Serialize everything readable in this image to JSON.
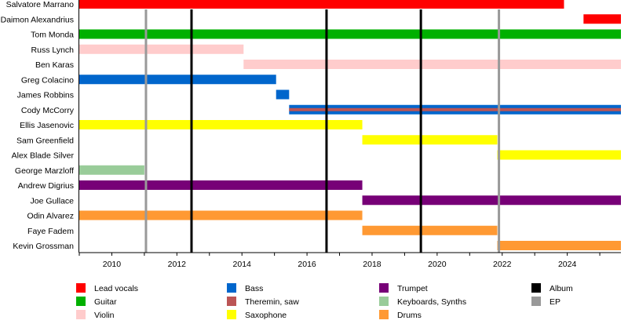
{
  "chart_data": {
    "type": "timeline",
    "xlim": [
      2009.0,
      2025.65
    ],
    "x_ticks": [
      2010,
      2012,
      2014,
      2016,
      2018,
      2020,
      2022,
      2024
    ],
    "grid": false,
    "legend_position": "bottom",
    "roles": {
      "lead_vocals": {
        "label": "Lead vocals",
        "color": "#ff0000"
      },
      "guitar": {
        "label": "Guitar",
        "color": "#00b000"
      },
      "violin": {
        "label": "Violin",
        "color": "#ffcccc"
      },
      "bass": {
        "label": "Bass",
        "color": "#0066cc"
      },
      "theremin": {
        "label": "Theremin, saw",
        "color": "#bb5555"
      },
      "saxophone": {
        "label": "Saxophone",
        "color": "#ffff00"
      },
      "trumpet": {
        "label": "Trumpet",
        "color": "#770077"
      },
      "keyboards": {
        "label": "Keyboards, Synths",
        "color": "#99cc99"
      },
      "drums": {
        "label": "Drums",
        "color": "#ff9933"
      },
      "album": {
        "label": "Album",
        "color": "#000000"
      },
      "ep": {
        "label": "EP",
        "color": "#999999"
      }
    },
    "legend_order": [
      [
        "lead_vocals",
        "guitar",
        "violin"
      ],
      [
        "bass",
        "theremin",
        "saxophone"
      ],
      [
        "trumpet",
        "keyboards",
        "drums"
      ],
      [
        "album",
        "ep"
      ]
    ],
    "members": [
      {
        "name": "Salvatore Marrano",
        "spans": [
          {
            "role": "lead_vocals",
            "start": 2009.0,
            "end": 2023.9
          }
        ]
      },
      {
        "name": "Daimon Alexandrius",
        "spans": [
          {
            "role": "lead_vocals",
            "start": 2024.5,
            "end": 2025.65
          }
        ]
      },
      {
        "name": "Tom Monda",
        "spans": [
          {
            "role": "guitar",
            "start": 2009.0,
            "end": 2025.65
          }
        ]
      },
      {
        "name": "Russ Lynch",
        "spans": [
          {
            "role": "violin",
            "start": 2009.0,
            "end": 2014.05
          }
        ]
      },
      {
        "name": "Ben Karas",
        "spans": [
          {
            "role": "violin",
            "start": 2014.05,
            "end": 2025.65
          }
        ]
      },
      {
        "name": "Greg Colacino",
        "spans": [
          {
            "role": "bass",
            "start": 2009.0,
            "end": 2015.05
          }
        ]
      },
      {
        "name": "James Robbins",
        "spans": [
          {
            "role": "bass",
            "start": 2015.05,
            "end": 2015.45
          }
        ]
      },
      {
        "name": "Cody McCorry",
        "spans": [
          {
            "role": "bass",
            "start": 2015.45,
            "end": 2025.65,
            "secondary": "theremin"
          }
        ]
      },
      {
        "name": "Ellis Jasenovic",
        "spans": [
          {
            "role": "saxophone",
            "start": 2009.0,
            "end": 2017.7
          }
        ]
      },
      {
        "name": "Sam Greenfield",
        "spans": [
          {
            "role": "saxophone",
            "start": 2017.7,
            "end": 2021.85
          }
        ]
      },
      {
        "name": "Alex Blade Silver",
        "spans": [
          {
            "role": "saxophone",
            "start": 2021.85,
            "end": 2025.65
          }
        ]
      },
      {
        "name": "George Marzloff",
        "spans": [
          {
            "role": "keyboards",
            "start": 2009.0,
            "end": 2011.0
          }
        ]
      },
      {
        "name": "Andrew Digrius",
        "spans": [
          {
            "role": "trumpet",
            "start": 2009.0,
            "end": 2017.7
          }
        ]
      },
      {
        "name": "Joe Gullace",
        "spans": [
          {
            "role": "trumpet",
            "start": 2017.7,
            "end": 2025.65
          }
        ]
      },
      {
        "name": "Odin Alvarez",
        "spans": [
          {
            "role": "drums",
            "start": 2009.0,
            "end": 2017.7
          }
        ]
      },
      {
        "name": "Faye Fadem",
        "spans": [
          {
            "role": "drums",
            "start": 2017.7,
            "end": 2021.85
          }
        ]
      },
      {
        "name": "Kevin Grossman",
        "spans": [
          {
            "role": "drums",
            "start": 2021.85,
            "end": 2025.65
          }
        ]
      }
    ],
    "releases": [
      {
        "type": "ep",
        "date": 2011.05
      },
      {
        "type": "album",
        "date": 2012.45
      },
      {
        "type": "album",
        "date": 2016.6
      },
      {
        "type": "album",
        "date": 2019.5
      },
      {
        "type": "ep",
        "date": 2021.9
      }
    ]
  }
}
